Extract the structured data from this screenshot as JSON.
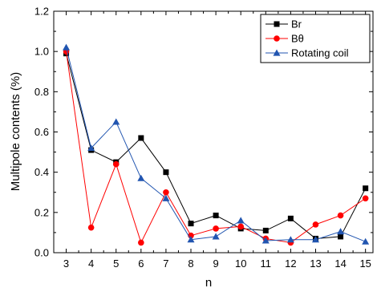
{
  "chart_data": {
    "type": "line",
    "title": "",
    "xlabel": "n",
    "ylabel": "Multipole contents (%)",
    "xlim": [
      2.5,
      15.3
    ],
    "ylim": [
      0.0,
      1.2
    ],
    "xticks": [
      3,
      4,
      5,
      6,
      7,
      8,
      9,
      10,
      11,
      12,
      13,
      14,
      15
    ],
    "yticks": [
      0.0,
      0.2,
      0.4,
      0.6,
      0.8,
      1.0,
      1.2
    ],
    "grid": false,
    "legend_position": "top-right",
    "series": [
      {
        "name": "Br",
        "marker": "square",
        "color": "#000000",
        "x": [
          3,
          4,
          5,
          6,
          7,
          8,
          9,
          10,
          11,
          12,
          13,
          14,
          15
        ],
        "values": [
          0.99,
          0.51,
          0.45,
          0.57,
          0.4,
          0.145,
          0.185,
          0.12,
          0.11,
          0.17,
          0.07,
          0.08,
          0.32
        ]
      },
      {
        "name": "Bθ",
        "marker": "circle",
        "color": "#ff0000",
        "x": [
          3,
          4,
          5,
          6,
          7,
          8,
          9,
          10,
          11,
          12,
          13,
          14,
          15
        ],
        "values": [
          1.0,
          0.125,
          0.44,
          0.05,
          0.3,
          0.085,
          0.12,
          0.13,
          0.07,
          0.05,
          0.14,
          0.185,
          0.27
        ]
      },
      {
        "name": "Rotating coil",
        "marker": "triangle",
        "color": "#2155b0",
        "x": [
          3,
          4,
          5,
          6,
          7,
          8,
          9,
          10,
          11,
          12,
          13,
          14,
          15
        ],
        "values": [
          1.02,
          0.52,
          0.65,
          0.37,
          0.27,
          0.065,
          0.08,
          0.16,
          0.06,
          0.065,
          0.065,
          0.105,
          0.055
        ]
      }
    ]
  }
}
